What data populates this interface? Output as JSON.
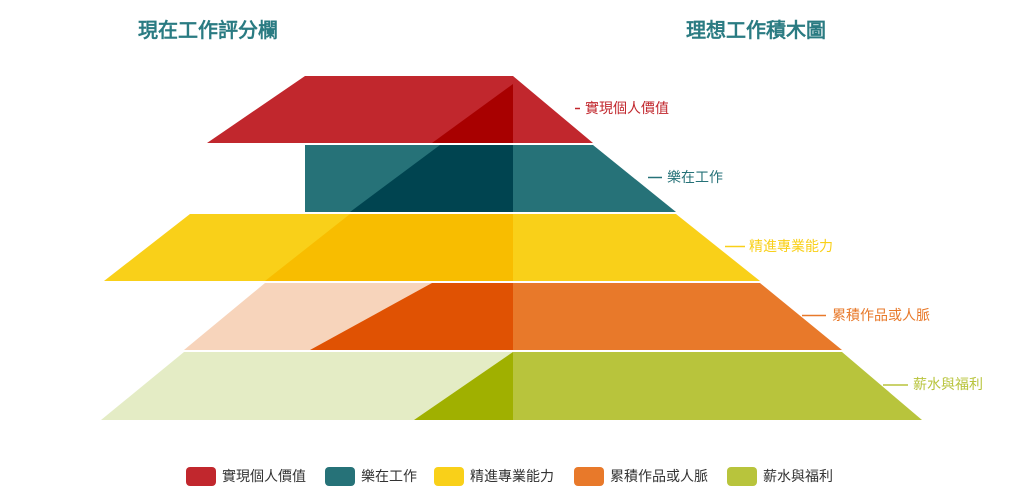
{
  "titles": {
    "left": "現在工作評分欄",
    "right": "理想工作積木圖"
  },
  "chart_data": {
    "type": "pyramid",
    "left_title": "現在工作評分欄",
    "right_title": "理想工作積木圖",
    "levels": [
      {
        "name": "實現個人價值",
        "color": "#c1272d",
        "dark": "#a80000",
        "light": "#c1272d",
        "current_rating": "high",
        "ideal": "top"
      },
      {
        "name": "樂在工作",
        "color": "#267278",
        "dark": "#004450",
        "light": "#267278",
        "current_rating": "high",
        "ideal": "second"
      },
      {
        "name": "精進專業能力",
        "color": "#f9d019",
        "dark": "#f8bd00",
        "light": "#f9d019",
        "current_rating": "high",
        "ideal": "third"
      },
      {
        "name": "累積作品或人脈",
        "color": "#e8792a",
        "dark": "#e05203",
        "light": "#f7d4bb",
        "current_rating": "medium",
        "ideal": "fourth"
      },
      {
        "name": "薪水與福利",
        "color": "#b8c43c",
        "dark": "#a0b000",
        "light": "#e4ecc5",
        "current_rating": "low",
        "ideal": "base"
      }
    ]
  },
  "legend": [
    {
      "label": "實現個人價值",
      "color": "#c1272d"
    },
    {
      "label": "樂在工作",
      "color": "#267278"
    },
    {
      "label": "精進專業能力",
      "color": "#f9d019"
    },
    {
      "label": "累積作品或人脈",
      "color": "#e8792a"
    },
    {
      "label": "薪水與福利",
      "color": "#b8c43c"
    }
  ]
}
